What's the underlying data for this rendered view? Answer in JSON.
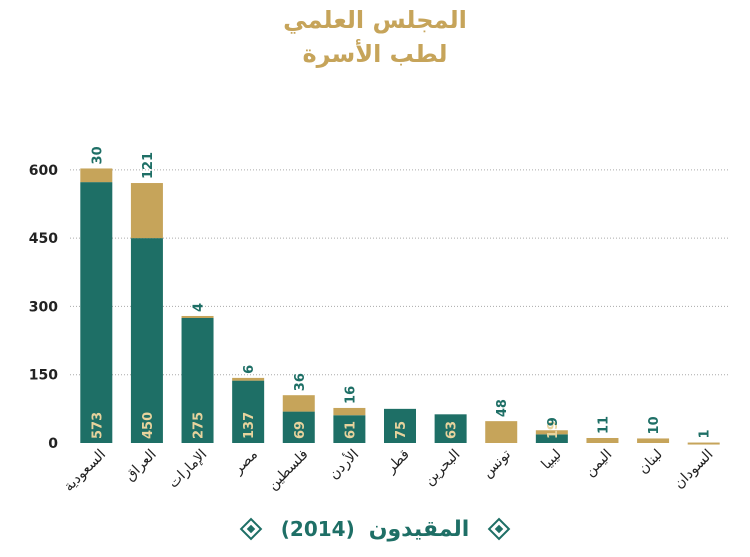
{
  "title_lines": [
    "المجلس العلمي",
    "لطب الأسرة"
  ],
  "legend": {
    "label": "المقيدون",
    "year": "(2014)"
  },
  "colors": {
    "base": "#1e6f66",
    "top": "#c6a45a",
    "grid": "#aaaaaa",
    "axis_text": "#222222"
  },
  "chart_data": {
    "type": "bar",
    "stacked": true,
    "categories": [
      "السعودية",
      "العراق",
      "الإمارات",
      "مصر",
      "فلسطين",
      "الأردن",
      "قطر",
      "البحرين",
      "تونس",
      "ليبيا",
      "اليمن",
      "لبنان",
      "السودان"
    ],
    "series": [
      {
        "values": [
          573,
          450,
          275,
          137,
          69,
          61,
          75,
          63,
          0,
          19,
          0,
          0,
          0
        ]
      },
      {
        "values": [
          30,
          121,
          4,
          6,
          36,
          16,
          0,
          0,
          48,
          9,
          11,
          10,
          1
        ]
      }
    ],
    "bottom_labels": [
      "573",
      "450",
      "275",
      "137",
      "69",
      "61",
      "75",
      "63",
      "",
      "19",
      "",
      "",
      ""
    ],
    "top_labels": [
      "30",
      "121",
      "4",
      "6",
      "36",
      "16",
      "",
      "",
      "48",
      "9",
      "11",
      "10",
      "1"
    ],
    "yticks": [
      0,
      150,
      300,
      450,
      600
    ],
    "ylim": [
      0,
      615
    ],
    "grid": true,
    "legend_position": "bottom"
  }
}
